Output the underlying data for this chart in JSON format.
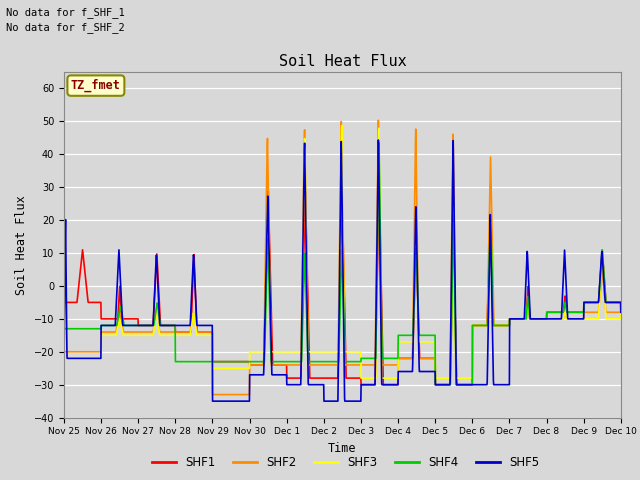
{
  "title": "Soil Heat Flux",
  "ylabel": "Soil Heat Flux",
  "xlabel": "Time",
  "ylim": [
    -40,
    65
  ],
  "yticks": [
    -40,
    -30,
    -20,
    -10,
    0,
    10,
    20,
    30,
    40,
    50,
    60
  ],
  "bg_color": "#d8d8d8",
  "plot_bg_color": "#d8d8d8",
  "annotation_text1": "No data for f_SHF_1",
  "annotation_text2": "No data for f_SHF_2",
  "legend_box_text": "TZ_fmet",
  "series_colors": {
    "SHF1": "#ff0000",
    "SHF2": "#ff8c00",
    "SHF3": "#ffff00",
    "SHF4": "#00cc00",
    "SHF5": "#0000cd"
  },
  "line_width": 1.2,
  "xtick_labels": [
    "Nov 25",
    "Nov 26",
    "Nov 27",
    "Nov 28",
    "Nov 29",
    "Nov 30",
    "Dec 1",
    "Dec 2",
    "Dec 3",
    "Dec 4",
    "Dec 5",
    "Dec 6",
    "Dec 7",
    "Dec 8",
    "Dec 9",
    "Dec 10"
  ],
  "num_points_per_day": 144,
  "total_days": 15
}
